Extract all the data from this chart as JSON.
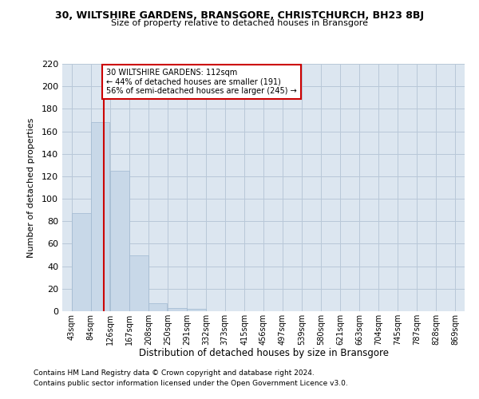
{
  "title": "30, WILTSHIRE GARDENS, BRANSGORE, CHRISTCHURCH, BH23 8BJ",
  "subtitle": "Size of property relative to detached houses in Bransgore",
  "xlabel": "Distribution of detached houses by size in Bransgore",
  "ylabel": "Number of detached properties",
  "bar_edges": [
    43,
    84,
    126,
    167,
    208,
    250,
    291,
    332,
    373,
    415,
    456,
    497,
    539,
    580,
    621,
    663,
    704,
    745,
    787,
    828,
    869
  ],
  "bar_heights": [
    87,
    168,
    125,
    50,
    7,
    3,
    2,
    0,
    0,
    0,
    0,
    0,
    0,
    0,
    0,
    0,
    0,
    0,
    0,
    0
  ],
  "bar_color": "#c8d8e8",
  "bar_edgecolor": "#a0b8d0",
  "property_line_x": 112,
  "property_line_color": "#cc0000",
  "annotation_text": "30 WILTSHIRE GARDENS: 112sqm\n← 44% of detached houses are smaller (191)\n56% of semi-detached houses are larger (245) →",
  "annotation_box_color": "#ffffff",
  "annotation_box_edgecolor": "#cc0000",
  "ylim": [
    0,
    220
  ],
  "yticks": [
    0,
    20,
    40,
    60,
    80,
    100,
    120,
    140,
    160,
    180,
    200,
    220
  ],
  "background_color": "#ffffff",
  "axes_background": "#dce6f0",
  "grid_color": "#b8c8d8",
  "footer_line1": "Contains HM Land Registry data © Crown copyright and database right 2024.",
  "footer_line2": "Contains public sector information licensed under the Open Government Licence v3.0."
}
